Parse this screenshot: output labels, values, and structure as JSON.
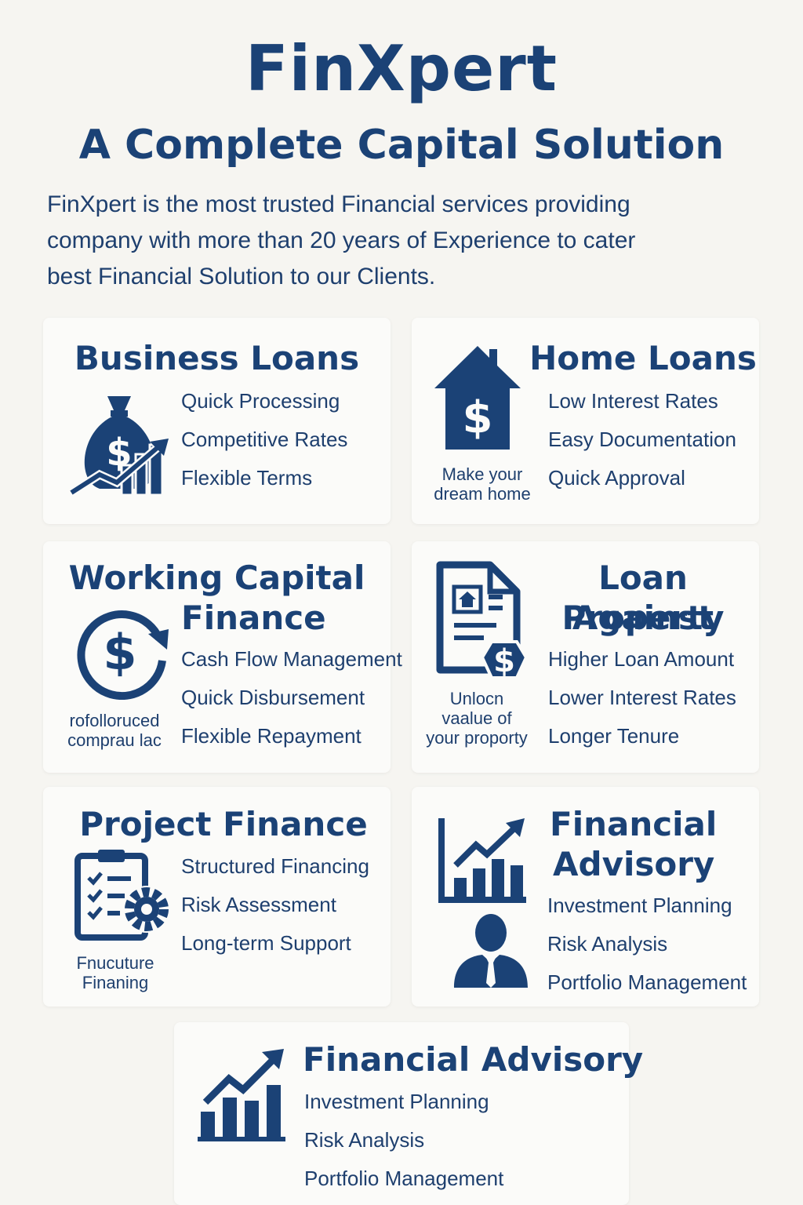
{
  "header": {
    "title": "FinXpert",
    "subtitle": "A Complete Capital Solution",
    "intro_line1": "FinXpert is the most trusted Financial services providing",
    "intro_line2": "company with more than 20 years of Experience to cater",
    "intro_line3": "best Financial Solution to our Clients."
  },
  "colors": {
    "primary": "#1b4276",
    "background": "#f6f5f1",
    "card": "#fbfbf9"
  },
  "cards": [
    {
      "title": "Business Loans",
      "icon": "money-bag-growth-icon",
      "features": [
        "Quick Processing",
        "Competitive Rates",
        "Flexible Terms"
      ]
    },
    {
      "title": "Home Loans",
      "icon": "house-dollar-icon",
      "caption_line1": "Make your",
      "caption_line2": "dream home",
      "features": [
        "Low Interest Rates",
        "Easy Documentation",
        "Quick Approval"
      ]
    },
    {
      "title_line1": "Working Capital",
      "title_line2": "Finance",
      "icon": "cycle-dollar-icon",
      "caption_line1": "rofolloruced",
      "caption_line2": "comprau lac",
      "features": [
        "Cash Flow Management",
        "Quick Disbursement",
        "Flexible Repayment"
      ]
    },
    {
      "title_line1": "Loan Against",
      "title_line2": "Property",
      "icon": "property-document-icon",
      "caption_line1": "Unlocn",
      "caption_line2": "vaalue of",
      "caption_line3": "your proporty",
      "features": [
        "Higher Loan Amount",
        "Lower Interest Rates",
        "Longer Tenure"
      ]
    },
    {
      "title": "Project Finance",
      "icon": "checklist-gear-icon",
      "caption_line1": "Fnucuture",
      "caption_line2": "Finaning",
      "features": [
        "Structured Financing",
        "Risk Assessment",
        "Long-term Support"
      ]
    },
    {
      "title_line1": "Financial",
      "title_line2": "Advisory",
      "icon": "growth-chart-icon",
      "icon2": "advisor-person-icon",
      "features": [
        "Investment Planning",
        "Risk Analysis",
        "Portfolio Management"
      ]
    },
    {
      "title": "Financial Advisory",
      "icon": "bar-chart-arrow-icon",
      "features": [
        "Investment Planning",
        "Risk Analysis",
        "Portfolio Management"
      ]
    }
  ]
}
